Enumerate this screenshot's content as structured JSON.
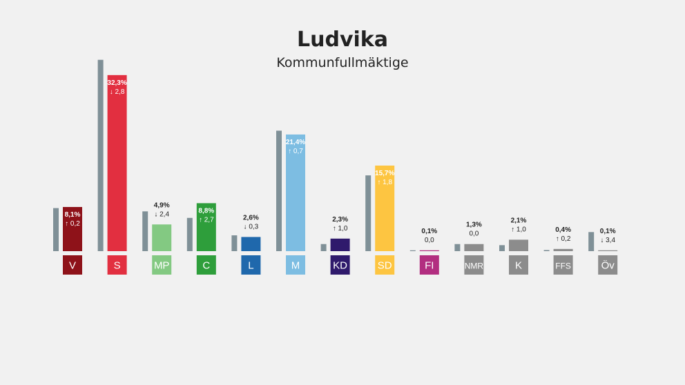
{
  "chart_data": {
    "type": "bar",
    "title": "Ludvika",
    "subtitle": "Kommunfullmäktige",
    "categories": [
      "V",
      "S",
      "MP",
      "C",
      "L",
      "M",
      "KD",
      "SD",
      "FI",
      "NMR",
      "K",
      "FFS",
      "Öv"
    ],
    "series": [
      {
        "values": [
          8.1,
          32.3,
          4.9,
          8.8,
          2.6,
          21.4,
          2.3,
          15.7,
          0.1,
          1.3,
          2.1,
          0.4,
          0.1
        ]
      },
      {
        "values": [
          7.9,
          35.1,
          7.3,
          6.1,
          2.9,
          22.1,
          1.3,
          13.9,
          0.1,
          1.3,
          1.1,
          0.2,
          3.5
        ]
      }
    ],
    "labels": [
      "8,1%",
      "32,3%",
      "4,9%",
      "8,8%",
      "2,6%",
      "21,4%",
      "2,3%",
      "15,7%",
      "0,1%",
      "1,3%",
      "2,1%",
      "0,4%",
      "0,1%"
    ],
    "changes": [
      "0,2",
      "2,8",
      "2,4",
      "2,7",
      "0,3",
      "0,7",
      "1,0",
      "1,8",
      "0,0",
      "0,0",
      "1,0",
      "0,2",
      "3,4"
    ],
    "change_dir": [
      "up",
      "down",
      "down",
      "up",
      "down",
      "up",
      "up",
      "up",
      "none",
      "none",
      "up",
      "up",
      "down"
    ],
    "colors": [
      "#8e1219",
      "#e22f40",
      "#83c982",
      "#2e9e3b",
      "#1f68ac",
      "#7dbde2",
      "#2f1a6c",
      "#fdc541",
      "#b22e80",
      "#8c8c8c",
      "#8c8c8c",
      "#8c8c8c",
      "#8c8c8c"
    ],
    "prev_color": "#7f9097"
  }
}
